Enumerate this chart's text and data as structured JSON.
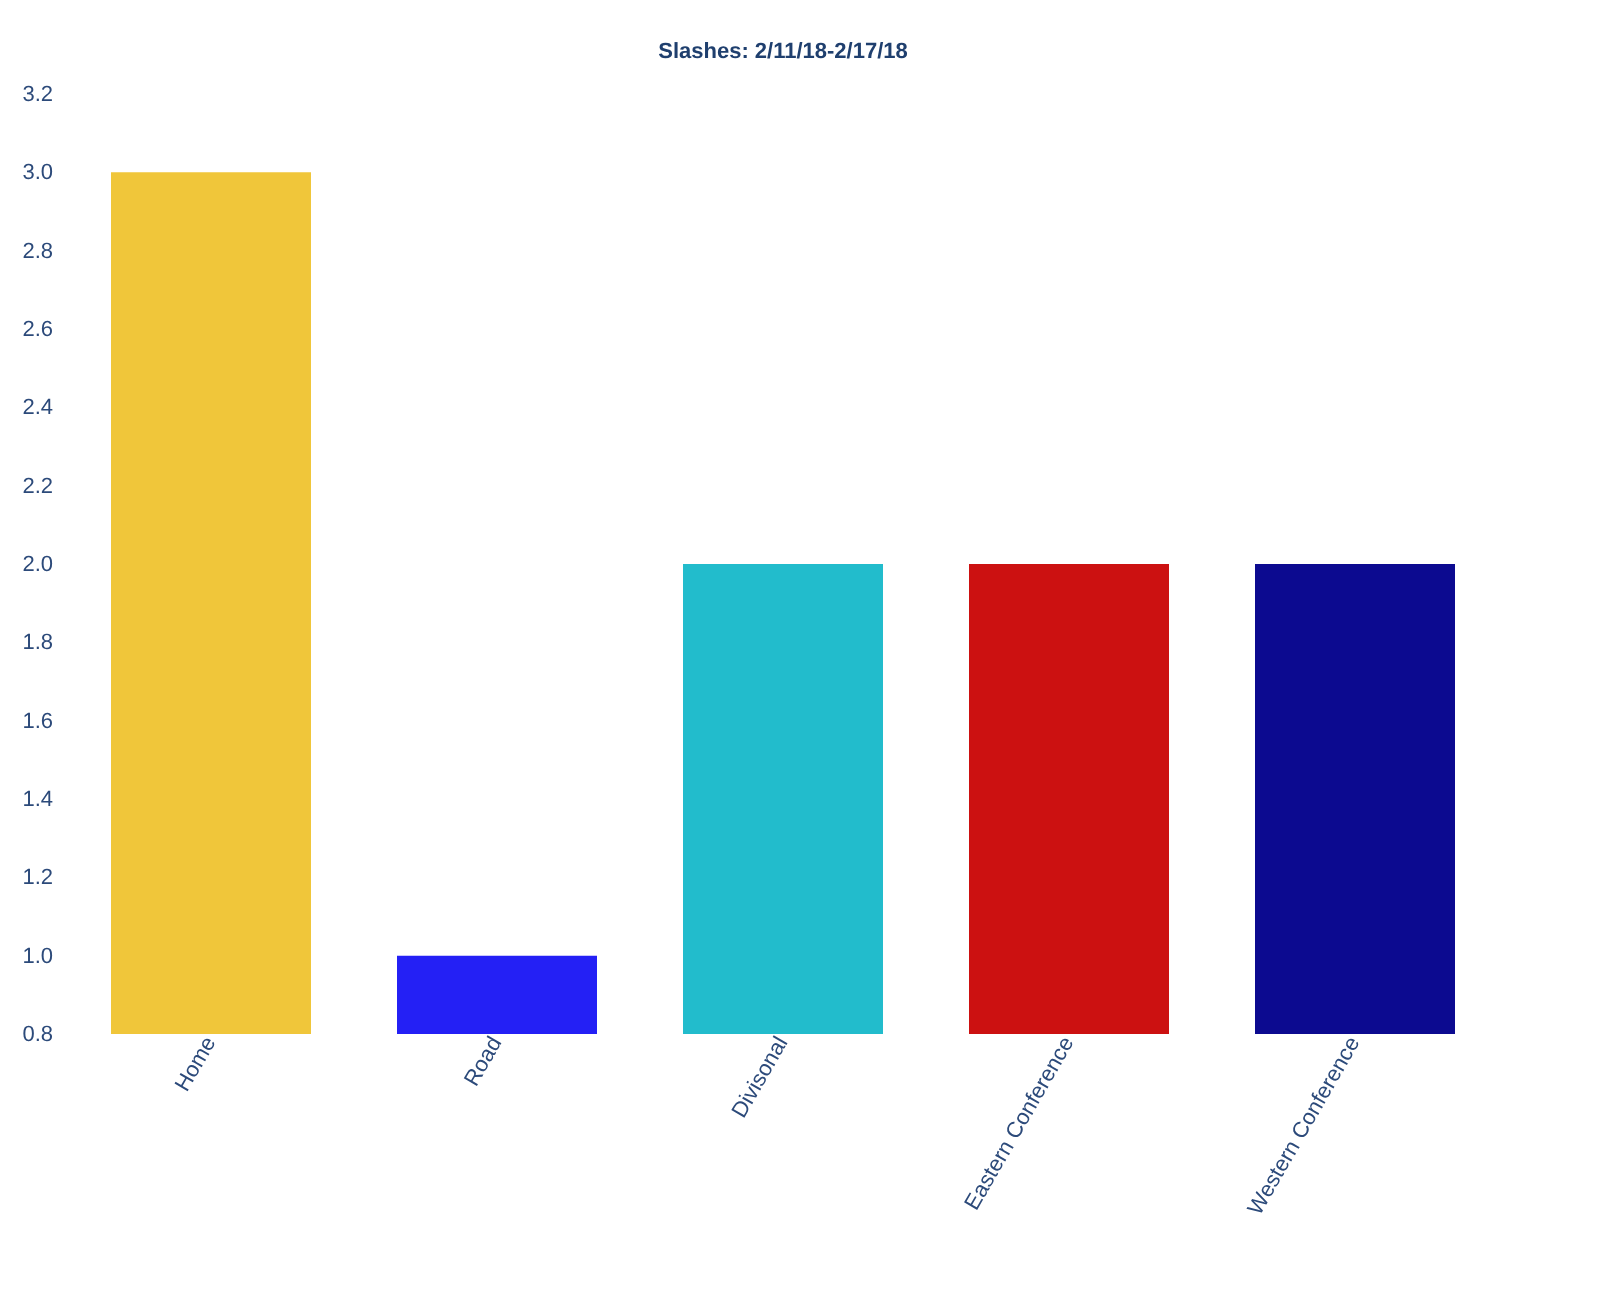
{
  "chart_data": {
    "type": "bar",
    "title": "Slashes: 2/11/18-2/17/18",
    "categories": [
      "Home",
      "Road",
      "Divisonal",
      "Eastern Conference",
      "Western Conference"
    ],
    "values": [
      3.0,
      1.0,
      2.0,
      2.0,
      2.0
    ],
    "colors": [
      "#f0c63a",
      "#2420f5",
      "#22bccc",
      "#cc1111",
      "#0c0a90"
    ],
    "ylim": [
      0.8,
      3.2
    ],
    "yticks": [
      0.8,
      {
        "value": 1.0,
        "label": "1.0"
      },
      1.2,
      1.4,
      1.6,
      1.8,
      {
        "value": 2.0,
        "label": "2.0"
      },
      2.2,
      2.4,
      2.6,
      2.8,
      {
        "value": 3.0,
        "label": "3.0"
      },
      3.2
    ],
    "grid": false,
    "legend": false
  }
}
